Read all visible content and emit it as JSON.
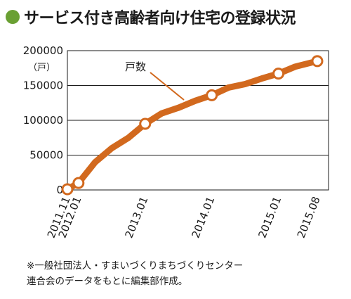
{
  "title": "サービス付き高齢者向け住宅の登録状況",
  "note": {
    "line1": "※一般社団法人・すまいづくりまちづくりセンター",
    "line2": "連合会のデータをもとに編集部作成。"
  },
  "colors": {
    "series": "#d2691e",
    "title_dot": "#6aa033",
    "plot_bg": "#ffffff",
    "grid": "#1a1a1a"
  },
  "chart_data": {
    "type": "line",
    "title": "サービス付き高齢者向け住宅の登録状況",
    "y_unit": "（戸）",
    "ylim": [
      0,
      200000
    ],
    "y_ticks": [
      0,
      50000,
      100000,
      150000,
      200000
    ],
    "y_tick_labels": [
      "0",
      "50000",
      "100000",
      "150000",
      "200000"
    ],
    "x_tick_labels": [
      "2011.11",
      "2012.01",
      "2013.01",
      "2014.01",
      "2015.01",
      "2015.08"
    ],
    "grid": true,
    "series": [
      {
        "name": "戸数",
        "x": [
          "2011.11",
          "2012.01",
          "2012.04",
          "2012.07",
          "2012.10",
          "2013.01",
          "2013.04",
          "2013.07",
          "2013.10",
          "2014.01",
          "2014.04",
          "2014.07",
          "2014.10",
          "2015.01",
          "2015.04",
          "2015.08"
        ],
        "values": [
          1000,
          10000,
          40000,
          60000,
          75000,
          95000,
          110000,
          118000,
          128000,
          136000,
          147000,
          152000,
          160000,
          167000,
          177000,
          185000
        ],
        "markers": [
          "2011.11",
          "2012.01",
          "2013.01",
          "2014.01",
          "2015.01",
          "2015.08"
        ]
      }
    ]
  }
}
